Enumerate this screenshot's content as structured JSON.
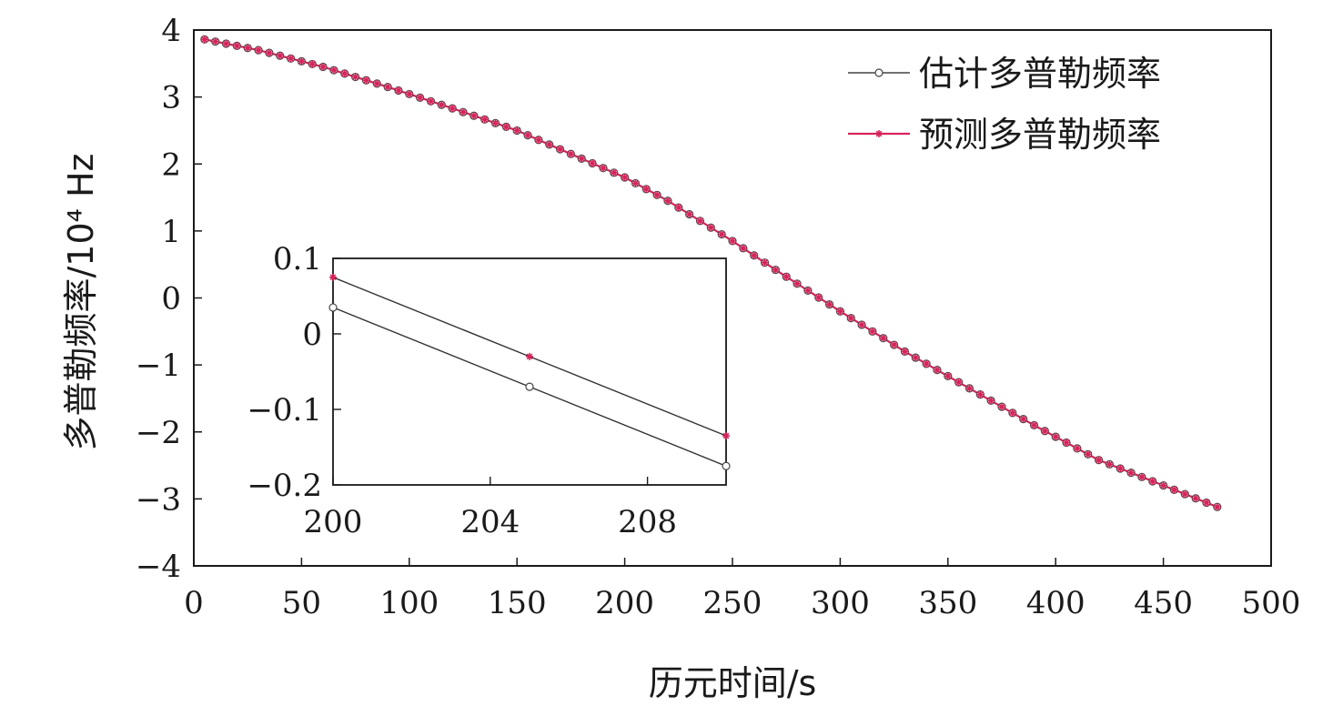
{
  "chart_data": {
    "type": "line",
    "xlabel": "历元时间/s",
    "ylabel": "多普勒频率/10⁴ Hz",
    "xlim": [
      0,
      500
    ],
    "ylim": [
      -4,
      4
    ],
    "xticks": [
      "0",
      "50",
      "100",
      "150",
      "200",
      "250",
      "300",
      "350",
      "400",
      "450",
      "500"
    ],
    "yticks": [
      "4",
      "3",
      "2",
      "1",
      "0",
      "−1",
      "−2",
      "−3",
      "−4"
    ],
    "grid": false,
    "legend_position": "top-right",
    "colors": {
      "estimated": "#444444",
      "predicted": "#d6245a",
      "axis": "#1a1a1a"
    },
    "series": [
      {
        "name": "估计多普勒频率",
        "marker": "open-circle",
        "x": [
          5,
          30,
          60,
          90,
          120,
          150,
          180,
          200,
          220,
          250,
          270,
          300,
          330,
          360,
          390,
          420,
          450,
          475
        ],
        "y": [
          3.86,
          3.7,
          3.45,
          3.15,
          2.83,
          2.5,
          2.08,
          1.8,
          1.45,
          0.85,
          0.42,
          -0.2,
          -0.8,
          -1.35,
          -1.9,
          -2.42,
          -2.8,
          -3.12
        ]
      },
      {
        "name": "预测多普勒频率",
        "marker": "asterisk",
        "x": [
          5,
          30,
          60,
          90,
          120,
          150,
          180,
          200,
          220,
          250,
          270,
          300,
          330,
          360,
          390,
          420,
          450,
          475
        ],
        "y": [
          3.86,
          3.7,
          3.45,
          3.15,
          2.83,
          2.5,
          2.08,
          1.8,
          1.45,
          0.85,
          0.42,
          -0.2,
          -0.8,
          -1.35,
          -1.9,
          -2.42,
          -2.8,
          -3.12
        ]
      }
    ],
    "inset": {
      "xlim": [
        200,
        210
      ],
      "ylim": [
        -0.2,
        0.1
      ],
      "xticks": [
        "200",
        "204",
        "208"
      ],
      "yticks": [
        "0.1",
        "0",
        "−0.1",
        "−0.2"
      ],
      "series": [
        {
          "name": "估计多普勒频率",
          "x": [
            200,
            205,
            210
          ],
          "y": [
            0.035,
            -0.07,
            -0.175
          ]
        },
        {
          "name": "预测多普勒频率",
          "x": [
            200,
            205,
            210
          ],
          "y": [
            0.075,
            -0.03,
            -0.135
          ]
        }
      ]
    }
  }
}
